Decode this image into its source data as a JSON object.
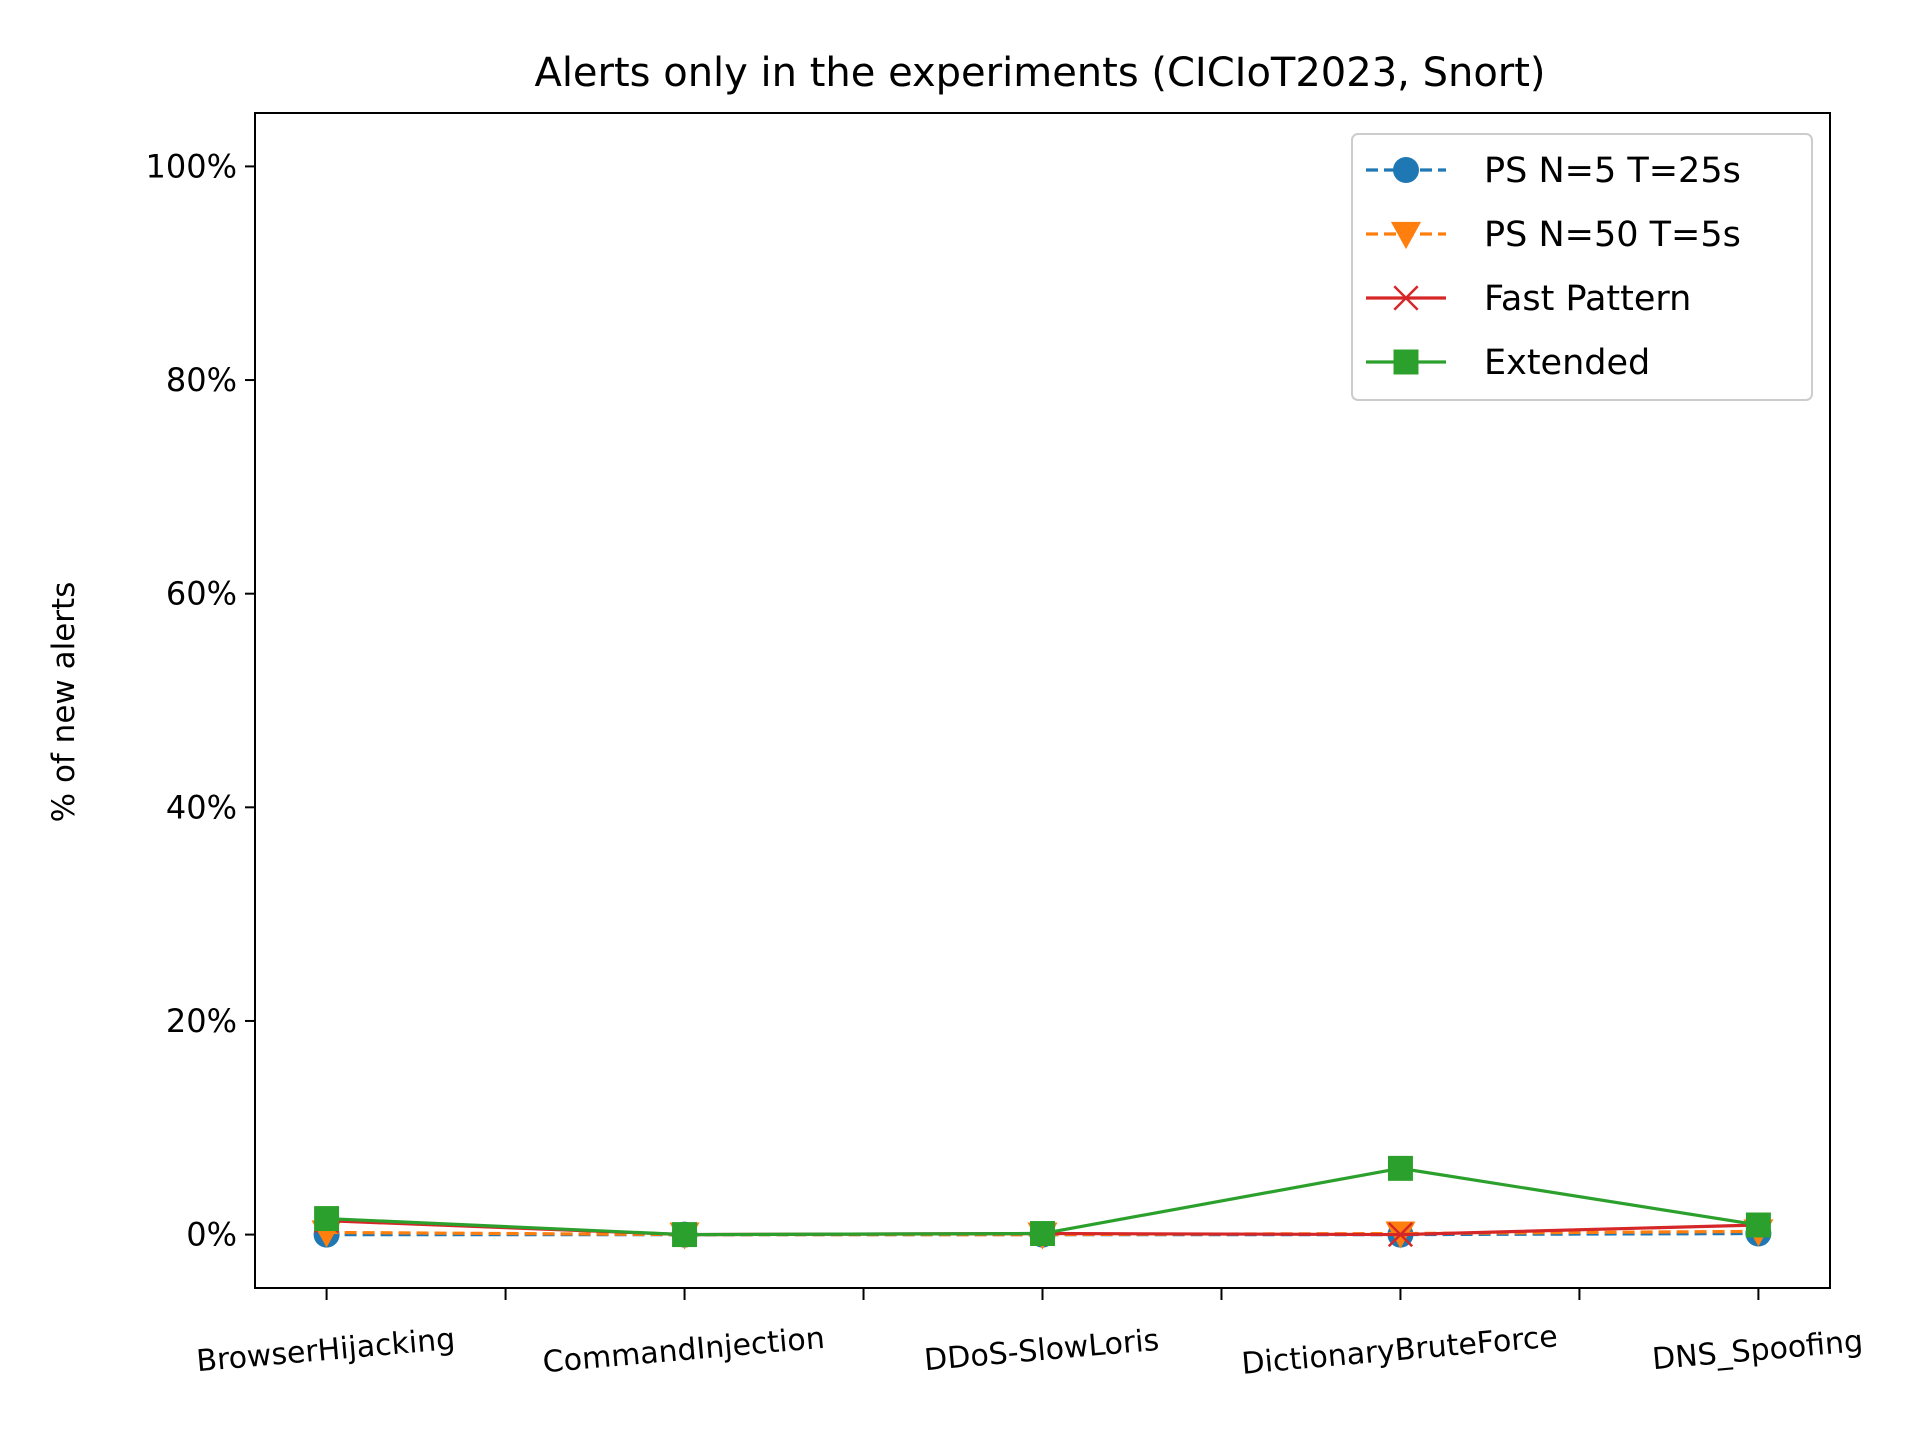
{
  "chart_data": {
    "type": "line",
    "title": "Alerts only in the experiments (CICIoT2023, Snort)",
    "xlabel": "",
    "ylabel": "% of new alerts",
    "categories": [
      "BrowserHijacking",
      "CommandInjection",
      "DDoS-SlowLoris",
      "DictionaryBruteForce",
      "DNS_Spoofing"
    ],
    "x_positions": [
      0,
      1,
      2,
      3,
      4
    ],
    "x_minor_ticks": [
      0.5,
      1.5,
      2.5,
      3.5
    ],
    "xlim": [
      -0.2,
      4.2
    ],
    "ylim": [
      -5,
      105
    ],
    "yticks": [
      0,
      20,
      40,
      60,
      80,
      100
    ],
    "ytick_labels": [
      "0%",
      "20%",
      "40%",
      "60%",
      "80%",
      "100%"
    ],
    "grid": false,
    "legend_position": "top-right",
    "series": [
      {
        "name": "PS N=5 T=25s",
        "values": [
          0.0,
          0.0,
          0.0,
          0.0,
          0.1
        ],
        "color": "#1f77b4",
        "marker": "circle",
        "linestyle": "dashed"
      },
      {
        "name": "PS N=50 T=5s",
        "values": [
          0.2,
          0.0,
          0.0,
          0.1,
          0.3
        ],
        "color": "#ff7f0e",
        "marker": "triangle-down",
        "linestyle": "dashed"
      },
      {
        "name": "Fast Pattern",
        "values": [
          1.3,
          0.0,
          0.1,
          0.0,
          0.9
        ],
        "color": "#d62728",
        "marker": "x",
        "linestyle": "solid"
      },
      {
        "name": "Extended",
        "values": [
          1.5,
          0.0,
          0.1,
          6.2,
          0.9
        ],
        "color": "#2ca02c",
        "marker": "square",
        "linestyle": "solid"
      }
    ]
  }
}
